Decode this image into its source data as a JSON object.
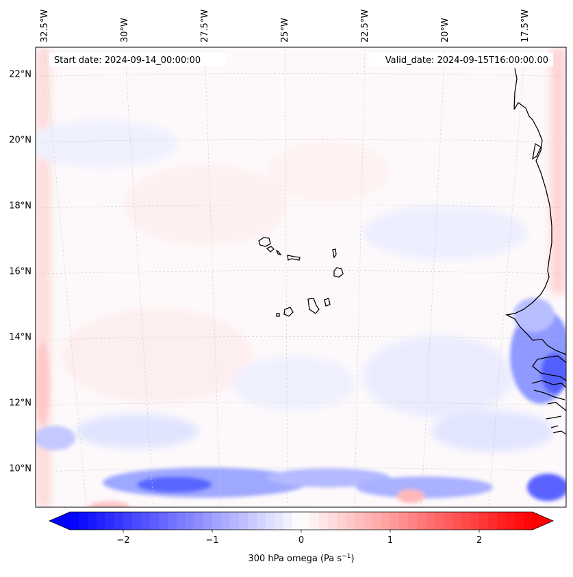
{
  "header": {
    "start_label": "Start date: 2024-09-14_00:00:00",
    "valid_label": "Valid_date: 2024-09-15T16:00:00.00"
  },
  "map": {
    "field": "300 hPa omega",
    "lon_range": [
      -33.5,
      -15.5
    ],
    "lat_range": [
      8.8,
      22.8
    ],
    "lon_ticks": [
      -32.5,
      -30,
      -27.5,
      -25,
      -22.5,
      -20,
      -17.5
    ],
    "lon_tick_labels": [
      "32.5°W",
      "30°W",
      "27.5°W",
      "25°W",
      "22.5°W",
      "20°W",
      "17.5°W"
    ],
    "lat_ticks": [
      10,
      12,
      14,
      16,
      18,
      20,
      22
    ],
    "lat_tick_labels": [
      "10°N",
      "12°N",
      "14°N",
      "16°N",
      "18°N",
      "20°N",
      "22°N"
    ],
    "gridlines": "dashed light gray",
    "coastline_color": "#000000"
  },
  "colorbar": {
    "cmap": "bwr",
    "vmin": -2.6,
    "vmax": 2.6,
    "extend": "both",
    "ticks": [
      -2,
      -1,
      0,
      1,
      2
    ],
    "tick_labels": [
      "−2",
      "−1",
      "0",
      "1",
      "2"
    ],
    "label_main": "300 hPa omega (Pa s",
    "label_sup": "−1",
    "label_end": ")",
    "low_color": "#0000ff",
    "mid_color": "#ffffff",
    "high_color": "#ff0000"
  }
}
